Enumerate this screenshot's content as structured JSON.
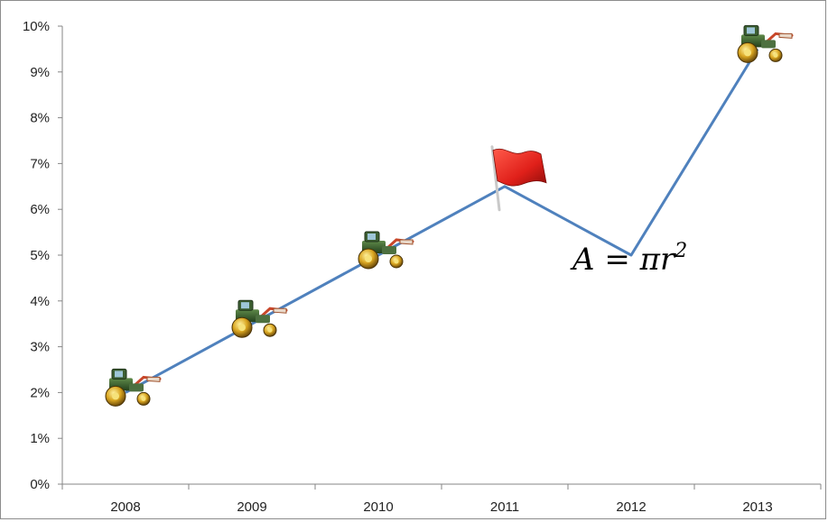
{
  "chart_data": {
    "type": "line",
    "categories": [
      "2008",
      "2009",
      "2010",
      "2011",
      "2012",
      "2013"
    ],
    "series": [
      {
        "values": [
          0.02,
          0.035,
          0.05,
          0.065,
          0.05,
          0.095
        ],
        "color": "#4f81bd"
      }
    ],
    "ylim": [
      0,
      0.1
    ],
    "yticks": [
      "0%",
      "1%",
      "2%",
      "3%",
      "4%",
      "5%",
      "6%",
      "7%",
      "8%",
      "9%",
      "10%"
    ],
    "grid": false,
    "markers": [
      "tractor-icon",
      "tractor-icon",
      "tractor-icon",
      "flag-icon",
      "none",
      "tractor-icon"
    ],
    "annotation": {
      "text_main": "A = πr",
      "text_sup": "2",
      "category": "2012",
      "value": 0.05
    }
  }
}
